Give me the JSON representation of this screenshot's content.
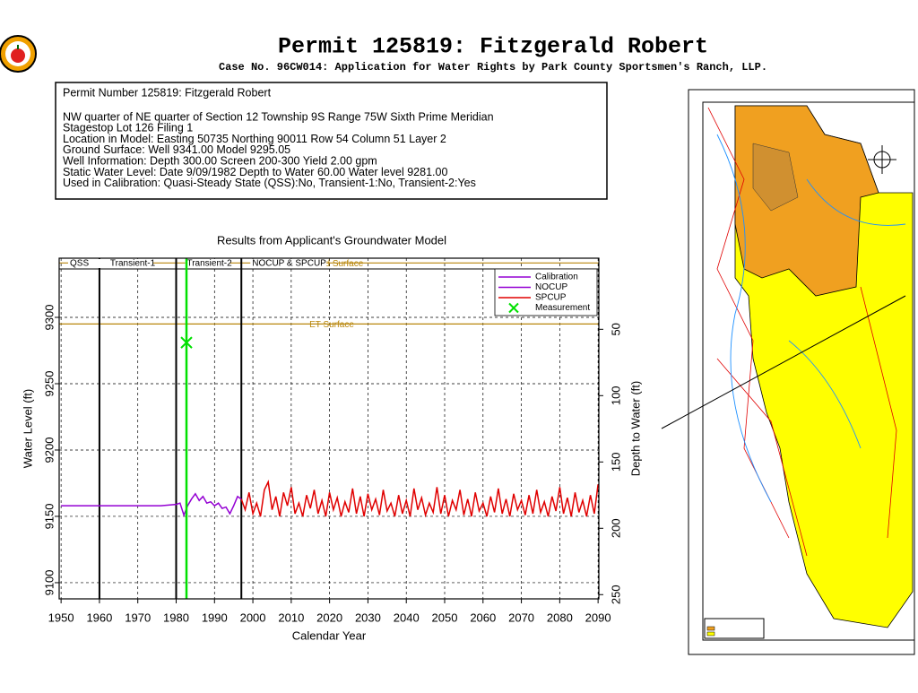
{
  "header": {
    "title": "Permit 125819:   Fitzgerald Robert",
    "subtitle": "Case No. 96CW014: Application for Water Rights by Park County Sportsmen's Ranch, LLP."
  },
  "info": {
    "lines": [
      "Permit Number 125819: Fitzgerald Robert",
      "NW quarter of NE quarter of Section 12 Township 9S Range 75W Sixth Prime Meridian",
      "Stagestop Lot 126 Filing 1",
      "Location in Model: Easting 50735 Northing  90011 Row  54 Column 51 Layer 2",
      "Ground Surface: Well   9341.00 Model   9295.05",
      "Well Information: Depth    300.00 Screen 200-300 Yield      2.00 gpm",
      "Static Water Level: Date   9/09/1982 Depth to Water     60.00 Water level  9281.00",
      "Used in Calibration: Quasi-Steady State (QSS):No, Transient-1:No, Transient-2:Yes"
    ]
  },
  "chart_data": {
    "type": "line",
    "title": "Results from Applicant's Groundwater Model",
    "x_label": "Calendar Year",
    "y_label": "Water Level (ft)",
    "y2_label": "Depth to Water (ft)",
    "xlim": [
      1949.5,
      2090.2
    ],
    "ylim": [
      9087.8,
      9344.6
    ],
    "y2lim": [
      253.2,
      -3.6
    ],
    "xticks": [
      1950,
      1960,
      1970,
      1980,
      1990,
      2000,
      2010,
      2020,
      2030,
      2040,
      2050,
      2060,
      2070,
      2080,
      2090
    ],
    "yticks": [
      9100,
      9150,
      9200,
      9250,
      9300
    ],
    "y2ticks": [
      50,
      100,
      150,
      200,
      250
    ],
    "grid": true,
    "period_boundaries": [
      1960,
      1980,
      1997
    ],
    "period_labels": [
      "QSS",
      "Transient-1",
      "Transient-2",
      "NOCUP & SPCUP"
    ],
    "hlines": [
      {
        "value": 9341,
        "label": "Ground Surface",
        "color": "#b8860b"
      },
      {
        "value": 9295,
        "label": "ET Surface",
        "color": "#b8860b"
      }
    ],
    "legend_position": "upper right",
    "series": [
      {
        "name": "Calibration",
        "color": "#9400d3",
        "x": [
          1950,
          1976,
          1980,
          1981,
          1982,
          1983,
          1984,
          1985,
          1986,
          1987,
          1988,
          1989,
          1990,
          1991,
          1992,
          1993,
          1994,
          1995,
          1996,
          1997
        ],
        "values": [
          9158,
          9158,
          9159,
          9160,
          9151,
          9158,
          9163,
          9167,
          9162,
          9165,
          9160,
          9161,
          9158,
          9160,
          9156,
          9157,
          9152,
          9158,
          9165,
          9163
        ]
      },
      {
        "name": "NOCUP",
        "color": "#9400d3",
        "x": [],
        "values": []
      },
      {
        "name": "SPCUP",
        "color": "#e00000",
        "x": [
          1997,
          1998,
          1999,
          2000,
          2001,
          2002,
          2003,
          2004,
          2005,
          2006,
          2007,
          2008,
          2009,
          2010,
          2011,
          2012,
          2013,
          2014,
          2015,
          2016,
          2017,
          2018,
          2019,
          2020,
          2021,
          2022,
          2023,
          2024,
          2025,
          2026,
          2027,
          2028,
          2029,
          2030,
          2031,
          2032,
          2033,
          2034,
          2035,
          2036,
          2037,
          2038,
          2039,
          2040,
          2041,
          2042,
          2043,
          2044,
          2045,
          2046,
          2047,
          2048,
          2049,
          2050,
          2051,
          2052,
          2053,
          2054,
          2055,
          2056,
          2057,
          2058,
          2059,
          2060,
          2061,
          2062,
          2063,
          2064,
          2065,
          2066,
          2067,
          2068,
          2069,
          2070,
          2071,
          2072,
          2073,
          2074,
          2075,
          2076,
          2077,
          2078,
          2079,
          2080,
          2081,
          2082,
          2083,
          2084,
          2085,
          2086,
          2087,
          2088,
          2089,
          2090
        ],
        "values": [
          9163,
          9155,
          9168,
          9152,
          9160,
          9150,
          9170,
          9176,
          9155,
          9165,
          9150,
          9168,
          9158,
          9172,
          9152,
          9160,
          9150,
          9166,
          9156,
          9170,
          9152,
          9162,
          9150,
          9168,
          9155,
          9164,
          9150,
          9161,
          9153,
          9171,
          9152,
          9165,
          9150,
          9167,
          9155,
          9163,
          9151,
          9170,
          9154,
          9160,
          9150,
          9166,
          9152,
          9162,
          9150,
          9171,
          9155,
          9164,
          9151,
          9160,
          9153,
          9172,
          9152,
          9166,
          9150,
          9162,
          9155,
          9170,
          9151,
          9163,
          9150,
          9168,
          9154,
          9160,
          9150,
          9165,
          9153,
          9171,
          9152,
          9163,
          9150,
          9167,
          9155,
          9162,
          9151,
          9166,
          9152,
          9170,
          9153,
          9161,
          9150,
          9165,
          9154,
          9172,
          9152,
          9164,
          9150,
          9168,
          9153,
          9162,
          9150,
          9166,
          9152,
          9174
        ]
      },
      {
        "name": "Measurement",
        "color": "#00e000",
        "marker": true,
        "x": [
          1982.69
        ],
        "values": [
          9281
        ]
      }
    ]
  }
}
